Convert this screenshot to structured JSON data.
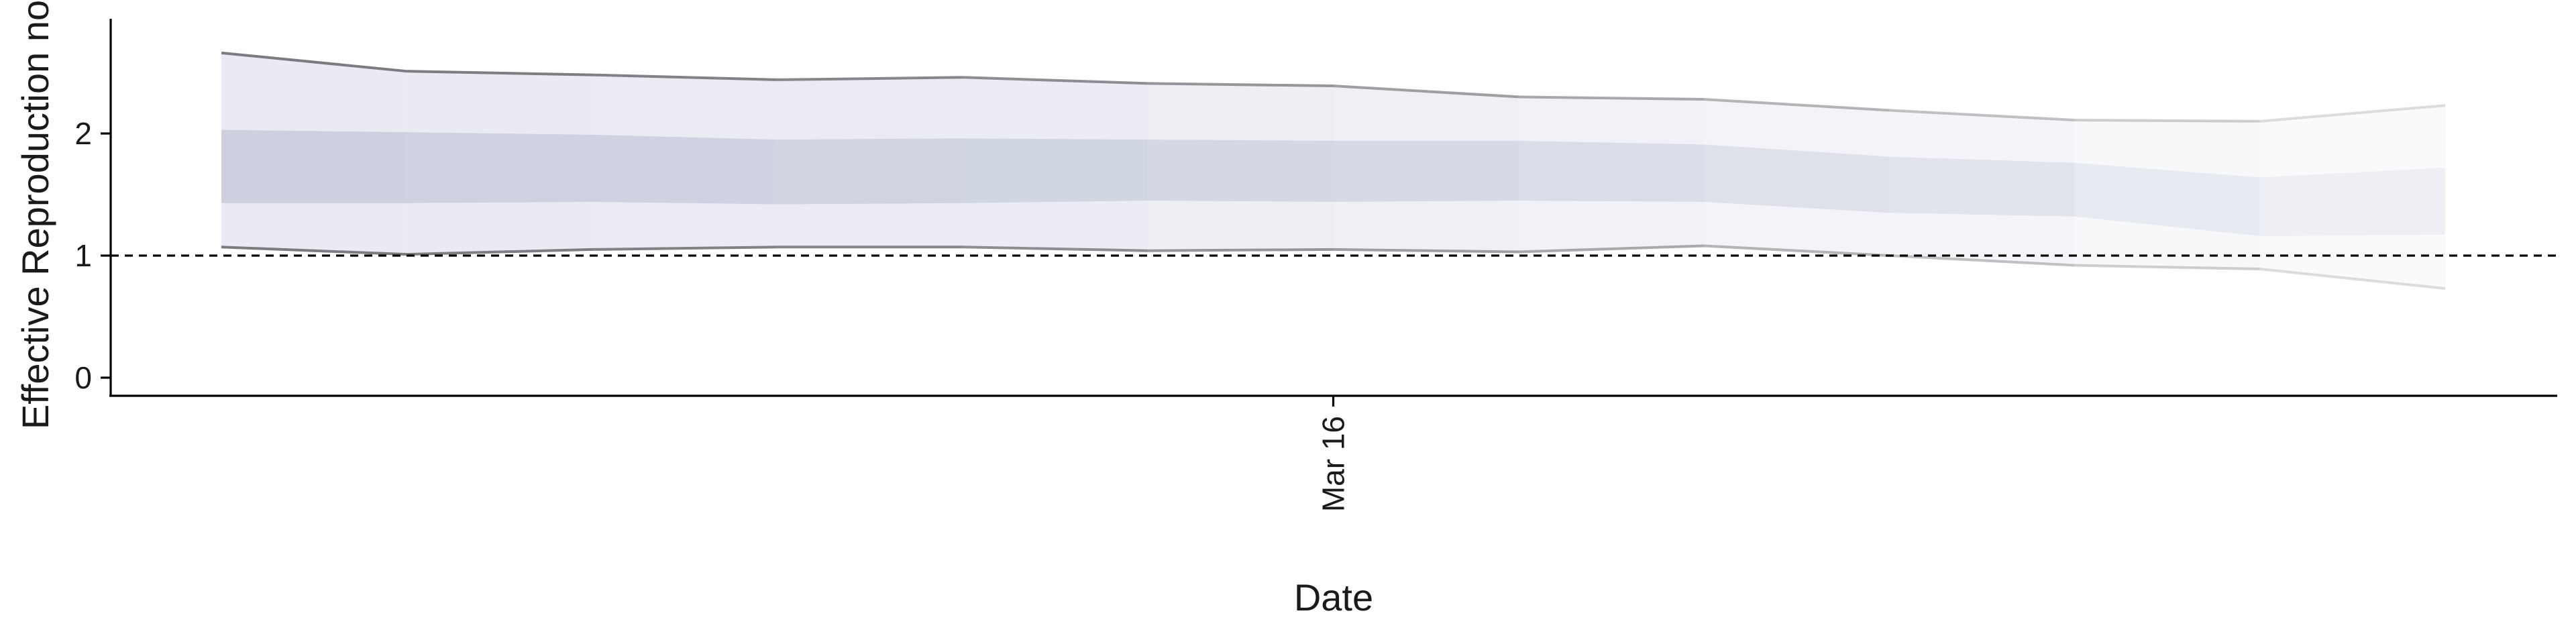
{
  "chart_data": {
    "type": "area",
    "title": "",
    "xlabel": "Date",
    "ylabel": "Effective Reproduction no",
    "x": [
      "2020-03-10",
      "2020-03-11",
      "2020-03-12",
      "2020-03-13",
      "2020-03-14",
      "2020-03-15",
      "2020-03-16",
      "2020-03-17",
      "2020-03-18",
      "2020-03-19",
      "2020-03-20",
      "2020-03-21",
      "2020-03-22"
    ],
    "x_ticks": [
      {
        "value": "2020-03-16",
        "label": "Mar 16"
      }
    ],
    "ylim": [
      -0.1,
      2.78
    ],
    "y_ticks": [
      0,
      1,
      2
    ],
    "series": [
      {
        "upper_outer": [
          2.66,
          2.51,
          2.48,
          2.44,
          2.46,
          2.41,
          2.39,
          2.3,
          2.28,
          2.19,
          2.11,
          2.1,
          2.23
        ],
        "upper_inner": [
          2.03,
          2.01,
          1.99,
          1.95,
          1.96,
          1.95,
          1.94,
          1.94,
          1.91,
          1.81,
          1.76,
          1.64,
          1.72
        ],
        "lower_inner": [
          1.43,
          1.43,
          1.44,
          1.42,
          1.43,
          1.45,
          1.44,
          1.45,
          1.44,
          1.35,
          1.32,
          1.16,
          1.17
        ],
        "lower_outer": [
          1.07,
          1.01,
          1.05,
          1.07,
          1.07,
          1.04,
          1.05,
          1.03,
          1.08,
          1.0,
          0.92,
          0.89,
          0.73
        ]
      }
    ],
    "reference_line": {
      "y": 1,
      "style": "dashed"
    },
    "grid": false,
    "legend": "none",
    "colors": {
      "outer_band": "#e9eaf2",
      "inner_band": "#cdd1df",
      "bound_line": "#7b7b80",
      "reference": "#000000",
      "axis": "#000000"
    }
  }
}
